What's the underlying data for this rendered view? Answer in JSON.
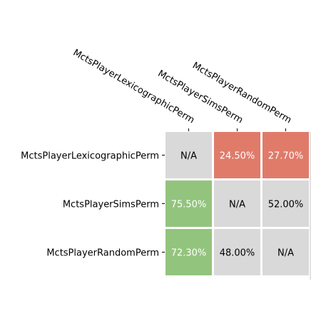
{
  "chart_data": {
    "type": "heatmap",
    "title": "",
    "xlabel": "",
    "ylabel": "",
    "rows": [
      "MctsPlayerLexicographicPerm",
      "MctsPlayerSimsPerm",
      "MctsPlayerRandomPerm"
    ],
    "columns": [
      "MctsPlayerLexicographicPerm",
      "MctsPlayerSimsPerm",
      "MctsPlayerRandomPerm"
    ],
    "values": [
      [
        null,
        24.5,
        27.7
      ],
      [
        75.5,
        null,
        52.0
      ],
      [
        72.3,
        48.0,
        null
      ]
    ],
    "labels": [
      [
        "N/A",
        "24.50%",
        "27.70%"
      ],
      [
        "75.50%",
        "N/A",
        "52.00%"
      ],
      [
        "72.30%",
        "48.00%",
        "N/A"
      ]
    ],
    "colors": {
      "high": "#93c47d",
      "low": "#e07b6a",
      "neutral": "#d9d9d9",
      "text_on_color": "#ffffff",
      "text_on_neutral": "#000000"
    },
    "grid": false,
    "legend": "none"
  }
}
